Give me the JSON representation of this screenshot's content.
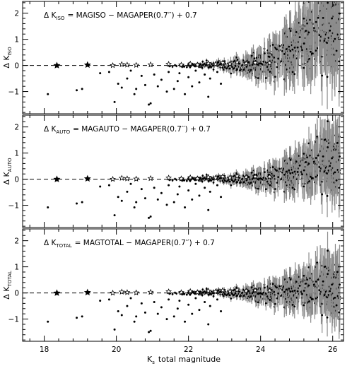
{
  "chart_data": {
    "type": "scatter",
    "shared_x": {
      "label_main": "K",
      "label_sub": "s",
      "label_rest": "total magnitude",
      "xlim": [
        17.4,
        26.3
      ],
      "major_ticks": [
        18,
        20,
        22,
        24,
        26
      ],
      "tick_labels": [
        "18",
        "20",
        "22",
        "24",
        "26"
      ]
    },
    "panels": [
      {
        "id": "iso",
        "ylabel_main": "Δ  K",
        "ylabel_sub": "ISO",
        "ylim": [
          -1.85,
          2.45
        ],
        "yticks": [
          -1,
          0,
          1,
          2
        ],
        "ytick_labels": [
          "−1",
          "0",
          "1",
          "2"
        ],
        "reference_line": 0,
        "annotation": {
          "delta": "Δ K",
          "sub": "ISO",
          "formula": "= MAGISO − MAGAPER(0.7′′) + 0.7"
        },
        "error_growth": 0.07,
        "faint_trend": 0.38
      },
      {
        "id": "auto",
        "ylabel_main": "Δ  K",
        "ylabel_sub": "AUTO",
        "ylim": [
          -1.85,
          2.45
        ],
        "yticks": [
          -1,
          0,
          1,
          2
        ],
        "ytick_labels": [
          "−1",
          "0",
          "1",
          "2"
        ],
        "reference_line": 0,
        "annotation": {
          "delta": "Δ K",
          "sub": "AUTO",
          "formula": "= MAGAUTO − MAGAPER(0.7′′) + 0.7"
        },
        "error_growth": 0.045,
        "faint_trend": 0.16
      },
      {
        "id": "total",
        "ylabel_main": "Δ  K",
        "ylabel_sub": "TOTAL",
        "ylim": [
          -1.85,
          2.45
        ],
        "yticks": [
          -1,
          0,
          1,
          2
        ],
        "ytick_labels": [
          "−1",
          "0",
          "1",
          "2"
        ],
        "reference_line": 0,
        "annotation": {
          "delta": "Δ K",
          "sub": "TOTAL",
          "formula": "= MAGTOTAL − MAGAPER(0.7′′) + 0.7"
        },
        "error_growth": 0.04,
        "faint_trend": 0.05
      }
    ],
    "series": [
      {
        "marker": "star",
        "points": [
          [
            18.35,
            0.0
          ],
          [
            19.2,
            0.02
          ],
          [
            19.9,
            0.0
          ],
          [
            20.15,
            0.04
          ],
          [
            20.3,
            0.02
          ],
          [
            20.55,
            0.01
          ],
          [
            20.95,
            0.03
          ],
          [
            21.45,
            0.05
          ],
          [
            21.8,
            0.02
          ],
          [
            22.05,
            0.06
          ],
          [
            22.25,
            0.02
          ],
          [
            22.55,
            0.08
          ],
          [
            22.75,
            0.05
          ],
          [
            22.95,
            0.1
          ],
          [
            23.15,
            0.06
          ],
          [
            23.35,
            0.12
          ],
          [
            23.6,
            0.08
          ],
          [
            23.85,
            0.1
          ],
          [
            24.25,
            0.09
          ]
        ]
      },
      {
        "marker": "dot",
        "points": [
          [
            18.1,
            -1.1
          ],
          [
            18.9,
            -0.95
          ],
          [
            19.05,
            -0.9
          ],
          [
            19.55,
            -0.3
          ],
          [
            19.8,
            -0.25
          ],
          [
            19.95,
            -1.4
          ],
          [
            20.05,
            -0.7
          ],
          [
            20.15,
            -0.85
          ],
          [
            20.3,
            -0.5
          ],
          [
            20.4,
            -0.2
          ],
          [
            20.5,
            -1.1
          ],
          [
            20.55,
            -0.9
          ],
          [
            20.7,
            -0.4
          ],
          [
            20.8,
            -0.75
          ],
          [
            20.9,
            -1.5
          ],
          [
            20.95,
            -1.45
          ],
          [
            21.05,
            -0.35
          ],
          [
            21.15,
            -0.8
          ],
          [
            21.25,
            -0.55
          ],
          [
            21.4,
            -1.0
          ],
          [
            21.45,
            -0.25
          ],
          [
            21.6,
            -0.9
          ],
          [
            21.7,
            -0.6
          ],
          [
            21.75,
            -0.3
          ],
          [
            21.9,
            -1.1
          ],
          [
            22.0,
            -0.45
          ],
          [
            22.1,
            -0.8
          ],
          [
            22.2,
            -0.2
          ],
          [
            22.3,
            -0.65
          ],
          [
            22.45,
            -0.35
          ],
          [
            22.55,
            -1.2
          ],
          [
            22.6,
            -0.5
          ],
          [
            22.8,
            -0.25
          ],
          [
            22.9,
            -0.7
          ]
        ]
      },
      {
        "marker": "errorbar",
        "n_points": 640,
        "mag_range": [
          21.4,
          26.2
        ],
        "seed": 11
      }
    ]
  }
}
